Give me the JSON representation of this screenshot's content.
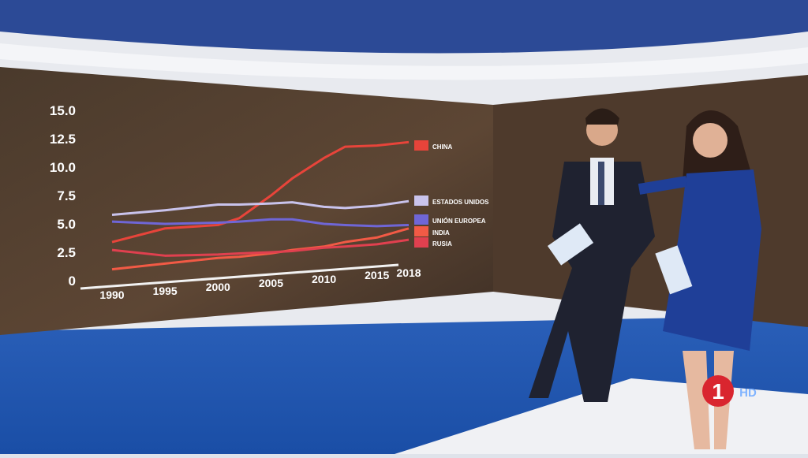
{
  "chart_data": {
    "type": "line",
    "x": [
      1990,
      1995,
      2000,
      2002,
      2005,
      2007,
      2010,
      2012,
      2015,
      2018
    ],
    "xlim": [
      1990,
      2018
    ],
    "xticks": [
      1990,
      1995,
      2000,
      2005,
      2010,
      2015,
      2018
    ],
    "ylim": [
      0,
      15
    ],
    "yticks": [
      0,
      {
        "value": 2.5,
        "label": "2.5"
      },
      {
        "value": 5,
        "label": "5.0"
      },
      {
        "value": 7.5,
        "label": "7.5"
      },
      {
        "value": 10,
        "label": "10.0"
      },
      {
        "value": 12.5,
        "label": "12.5"
      },
      {
        "value": 15,
        "label": "15.0"
      }
    ],
    "series": [
      {
        "name": "CHINA",
        "color": "#e8443a",
        "values": [
          3.4,
          4.6,
          4.9,
          5.5,
          7.5,
          9.0,
          10.8,
          11.8,
          11.9,
          12.2
        ]
      },
      {
        "name": "ESTADOS UNIDOS",
        "color": "#c9c3ec",
        "values": [
          5.8,
          6.2,
          6.7,
          6.7,
          6.8,
          6.9,
          6.5,
          6.4,
          6.6,
          7.0
        ]
      },
      {
        "name": "UNIÓN EUROPEA",
        "color": "#6f66d6",
        "values": [
          5.2,
          5.0,
          5.1,
          5.2,
          5.4,
          5.4,
          5.0,
          4.9,
          4.8,
          4.9
        ]
      },
      {
        "name": "INDIA",
        "color": "#f25a45",
        "values": [
          1.0,
          1.5,
          2.0,
          2.1,
          2.4,
          2.7,
          3.0,
          3.4,
          3.8,
          4.6
        ]
      },
      {
        "name": "RUSIA",
        "color": "#e0404f",
        "values": [
          2.7,
          2.2,
          2.3,
          2.4,
          2.5,
          2.6,
          2.9,
          3.0,
          3.2,
          3.6
        ]
      }
    ]
  },
  "logo": {
    "number": "1",
    "text": "HD"
  }
}
